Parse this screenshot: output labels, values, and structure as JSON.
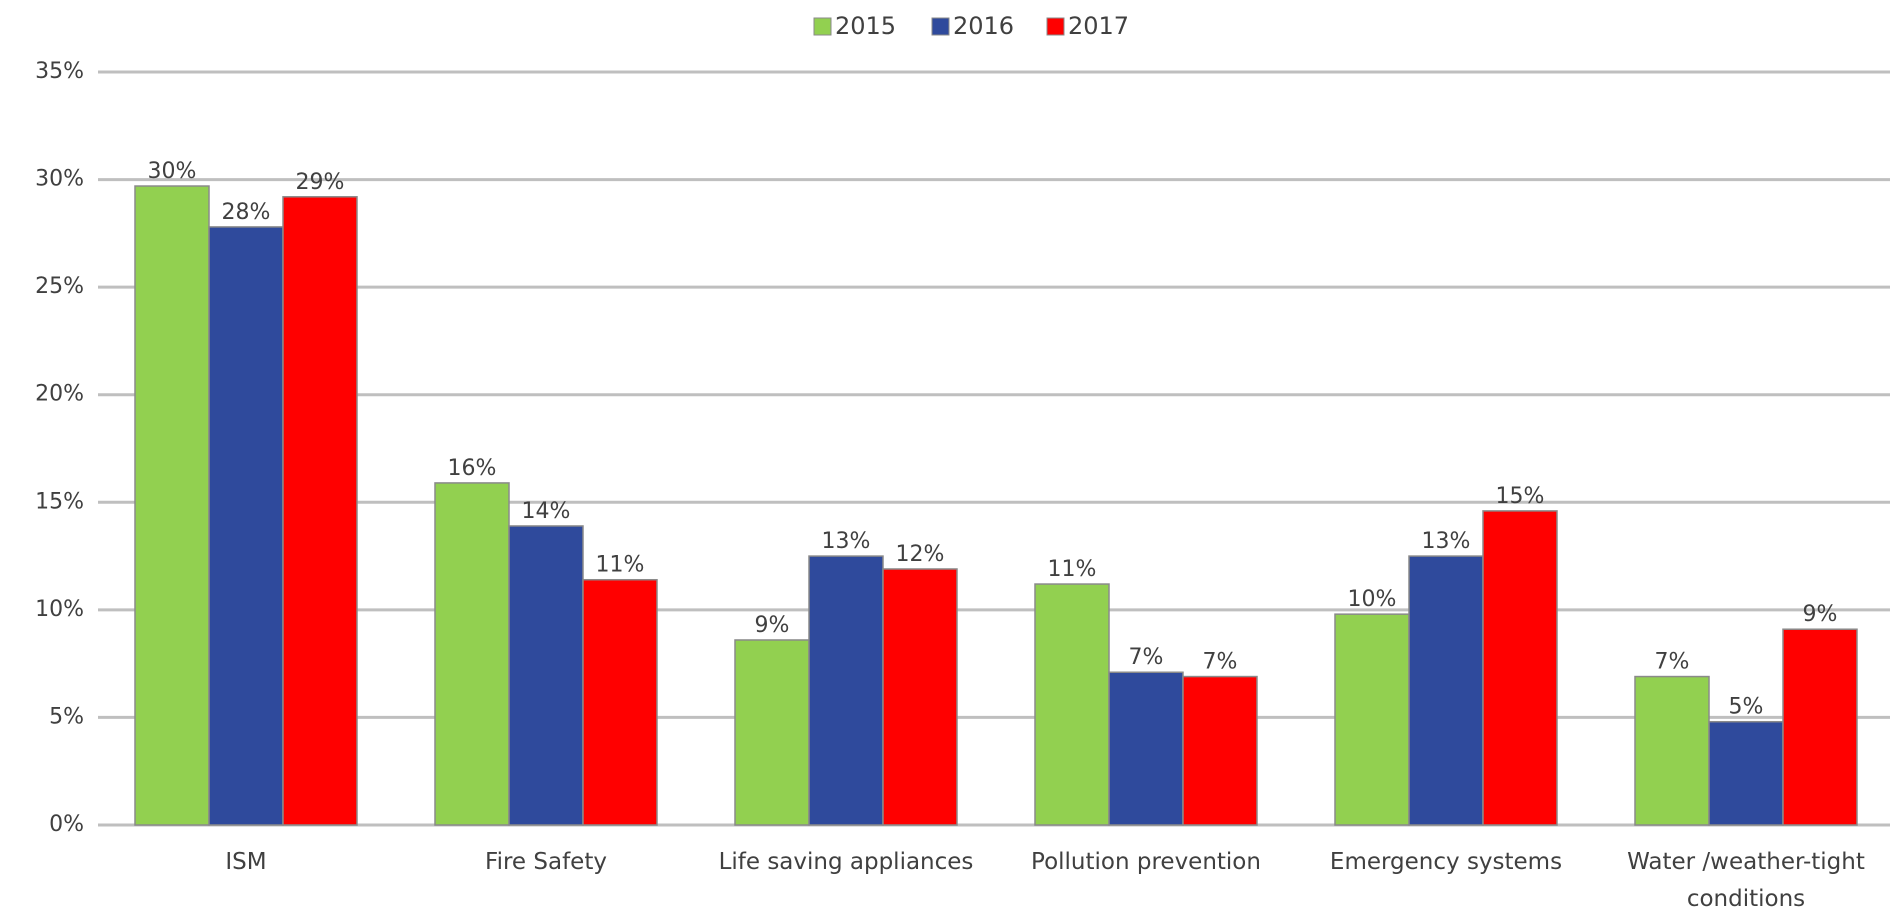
{
  "chart_data": {
    "type": "bar",
    "categories": [
      [
        "ISM"
      ],
      [
        "Fire Safety"
      ],
      [
        "Life saving appliances"
      ],
      [
        "Pollution prevention"
      ],
      [
        "Emergency systems"
      ],
      [
        "Water /weather-tight",
        "conditions"
      ]
    ],
    "series": [
      {
        "name": "2015",
        "color": "#92d050",
        "values": [
          29.7,
          15.9,
          8.6,
          11.2,
          9.8,
          6.9
        ],
        "labels": [
          "30%",
          "16%",
          "9%",
          "11%",
          "10%",
          "7%"
        ]
      },
      {
        "name": "2016",
        "color": "#2f4a9c",
        "values": [
          27.8,
          13.9,
          12.5,
          7.1,
          12.5,
          4.8
        ],
        "labels": [
          "28%",
          "14%",
          "13%",
          "7%",
          "13%",
          "5%"
        ]
      },
      {
        "name": "2017",
        "color": "#ff0000",
        "values": [
          29.2,
          11.4,
          11.9,
          6.9,
          14.6,
          9.1
        ],
        "labels": [
          "29%",
          "11%",
          "12%",
          "7%",
          "15%",
          "9%"
        ]
      }
    ],
    "ylim": [
      0,
      35
    ],
    "yticks": [
      "0%",
      "5%",
      "10%",
      "15%",
      "20%",
      "25%",
      "30%",
      "35%"
    ],
    "grid": true,
    "legend_position": "top-center",
    "gridline_color": "#bfbfbf",
    "bar_border_color": "#8a8a8a",
    "text_color": "#404040"
  }
}
